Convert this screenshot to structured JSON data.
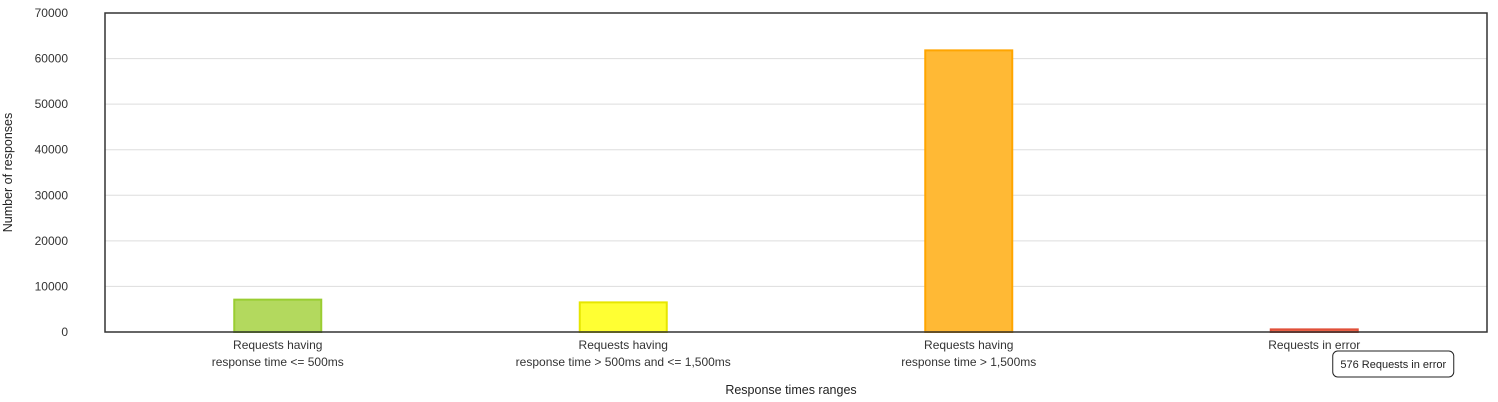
{
  "chart_data": {
    "type": "bar",
    "categories": [
      [
        "Requests having",
        "response time <= 500ms"
      ],
      [
        "Requests having",
        "response time > 500ms and <= 1,500ms"
      ],
      [
        "Requests having",
        "response time > 1,500ms"
      ],
      [
        "Requests in error"
      ]
    ],
    "values": [
      7100,
      6500,
      61800,
      576
    ],
    "colors": [
      "#b3d95e",
      "#ffff33",
      "#ffb935",
      "#ee6b4e"
    ],
    "border_colors": [
      "#9acd32",
      "#e6e600",
      "#ffa500",
      "#e0503a"
    ],
    "title": "",
    "xlabel": "Response times ranges",
    "ylabel": "Number of responses",
    "ylim": [
      0,
      70000
    ],
    "yticks": [
      0,
      10000,
      20000,
      30000,
      40000,
      50000,
      60000,
      70000
    ],
    "grid": true,
    "tooltip": {
      "category_index": 3,
      "text": "576 Requests in error"
    }
  }
}
